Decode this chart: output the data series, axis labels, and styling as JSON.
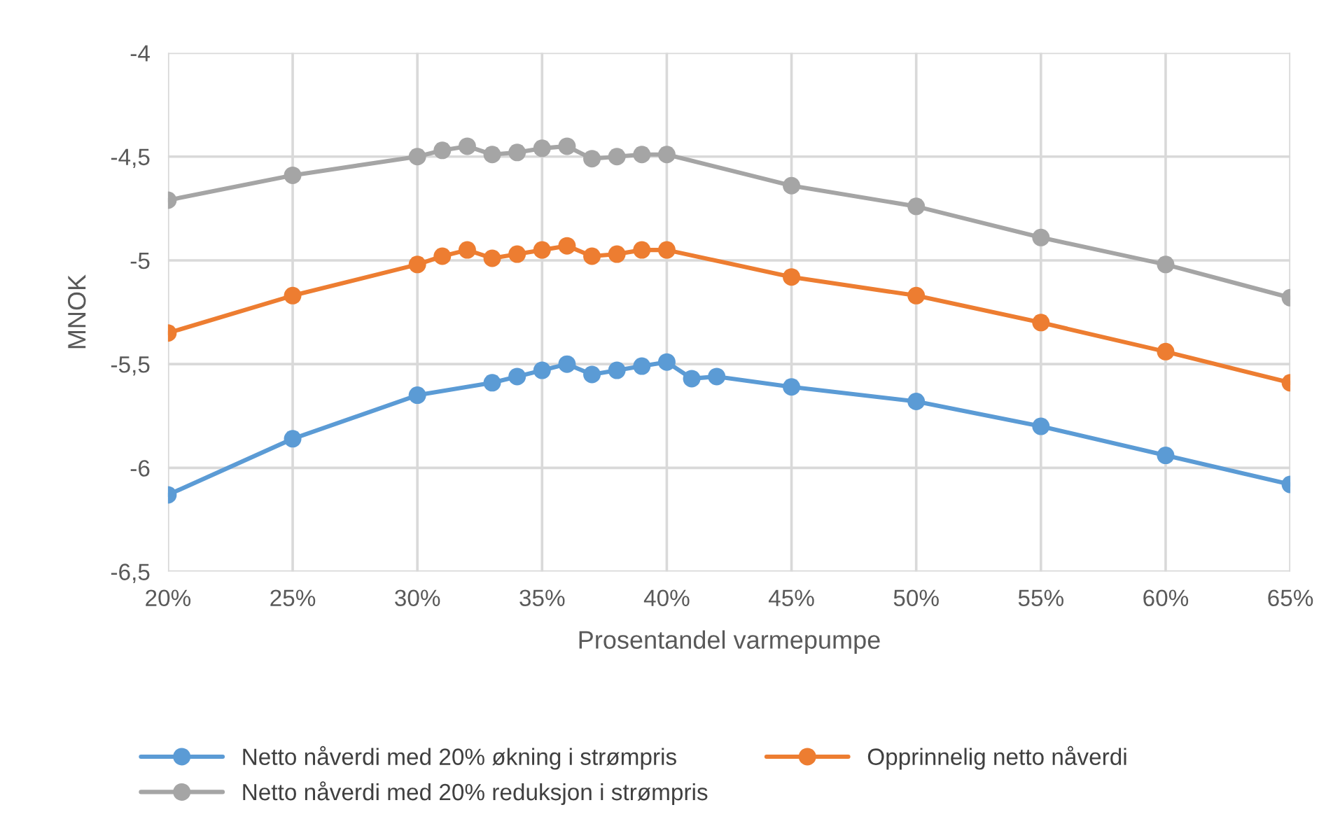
{
  "chart_data": {
    "type": "line",
    "xlabel": "Prosentandel varmepumpe",
    "ylabel": "MNOK",
    "series": [
      {
        "name": "Netto nåverdi med 20% økning i strømpris",
        "color": "#5b9bd5",
        "x": [
          20,
          25,
          30,
          33,
          34,
          35,
          36,
          37,
          38,
          39,
          40,
          41,
          42,
          45,
          50,
          55,
          60,
          65
        ],
        "values": [
          -6.13,
          -5.86,
          -5.65,
          -5.59,
          -5.56,
          -5.53,
          -5.5,
          -5.55,
          -5.53,
          -5.51,
          -5.49,
          -5.57,
          -5.56,
          -5.61,
          -5.68,
          -5.8,
          -5.94,
          -6.08
        ]
      },
      {
        "name": "Opprinnelig netto nåverdi",
        "color": "#ed7d31",
        "x": [
          20,
          25,
          30,
          31,
          32,
          33,
          34,
          35,
          36,
          37,
          38,
          39,
          40,
          45,
          50,
          55,
          60,
          65
        ],
        "values": [
          -5.35,
          -5.17,
          -5.02,
          -4.98,
          -4.95,
          -4.99,
          -4.97,
          -4.95,
          -4.93,
          -4.98,
          -4.97,
          -4.95,
          -4.95,
          -5.08,
          -5.17,
          -5.3,
          -5.44,
          -5.59
        ]
      },
      {
        "name": "Netto nåverdi med 20% reduksjon i strømpris",
        "color": "#a5a5a5",
        "x": [
          20,
          25,
          30,
          31,
          32,
          33,
          34,
          35,
          36,
          37,
          38,
          39,
          40,
          45,
          50,
          55,
          60,
          65
        ],
        "values": [
          -4.71,
          -4.59,
          -4.5,
          -4.47,
          -4.45,
          -4.49,
          -4.48,
          -4.46,
          -4.45,
          -4.51,
          -4.5,
          -4.49,
          -4.49,
          -4.64,
          -4.74,
          -4.89,
          -5.02,
          -5.18
        ]
      }
    ],
    "xlim": [
      20,
      65
    ],
    "xticks": [
      {
        "value": 20,
        "label": "20%"
      },
      {
        "value": 25,
        "label": "25%"
      },
      {
        "value": 30,
        "label": "30%"
      },
      {
        "value": 35,
        "label": "35%"
      },
      {
        "value": 40,
        "label": "40%"
      },
      {
        "value": 45,
        "label": "45%"
      },
      {
        "value": 50,
        "label": "50%"
      },
      {
        "value": 55,
        "label": "55%"
      },
      {
        "value": 60,
        "label": "60%"
      },
      {
        "value": 65,
        "label": "65%"
      }
    ],
    "ylim": [
      -6.5,
      -4
    ],
    "yticks": [
      {
        "value": -6.5,
        "label": "-6,5"
      },
      {
        "value": -6,
        "label": "-6"
      },
      {
        "value": -5.5,
        "label": "-5,5"
      },
      {
        "value": -5,
        "label": "-5"
      },
      {
        "value": -4.5,
        "label": "-4,5"
      },
      {
        "value": -4,
        "label": "-4"
      }
    ],
    "grid": true,
    "legend": "bottom",
    "marker": "circle",
    "line_style": "solid"
  }
}
